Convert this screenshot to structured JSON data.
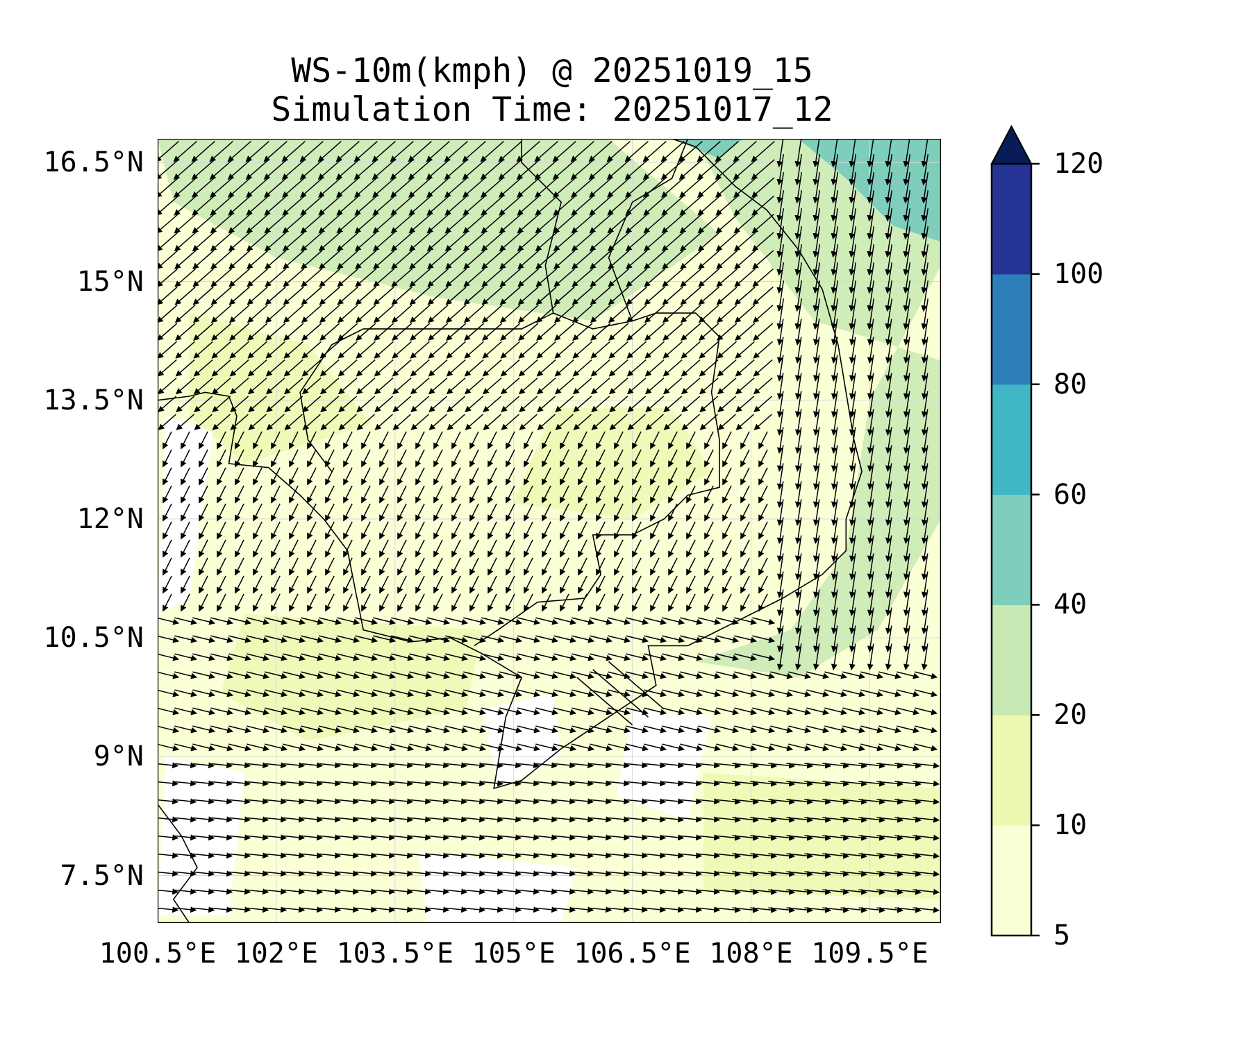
{
  "figure": {
    "title_line1": "WS-10m(kmph) @ 20251019_15",
    "title_line2": "Simulation Time: 20251017_12"
  },
  "axes": {
    "lon_range": [
      100.5,
      110.4
    ],
    "lat_range": [
      6.9,
      16.8
    ],
    "lon_ticks": [
      100.5,
      102,
      103.5,
      105,
      106.5,
      108,
      109.5
    ],
    "lon_tick_labels": [
      "100.5°E",
      "102°E",
      "103.5°E",
      "105°E",
      "106.5°E",
      "108°E",
      "109.5°E"
    ],
    "lat_ticks": [
      7.5,
      9,
      10.5,
      12,
      13.5,
      15,
      16.5
    ],
    "lat_tick_labels": [
      "7.5°N",
      "9°N",
      "10.5°N",
      "12°N",
      "13.5°N",
      "15°N",
      "16.5°N"
    ],
    "grid": true
  },
  "colorbar": {
    "levels": [
      5,
      10,
      20,
      40,
      60,
      80,
      100,
      120
    ],
    "labels": [
      "5",
      "10",
      "20",
      "40",
      "60",
      "80",
      "100",
      "120"
    ],
    "colors": [
      "#fbffd6",
      "#edf8b1",
      "#c7e9b4",
      "#7fcdbb",
      "#41b6c4",
      "#2c7fb8",
      "#253494"
    ],
    "extend_color": "#081d58",
    "extend": "max"
  },
  "map": {
    "land_color": "#fbffd6",
    "coast_color": "#000000",
    "arrow_color": "#000000"
  }
}
